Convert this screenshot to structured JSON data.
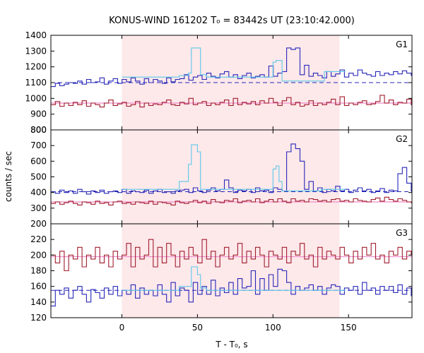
{
  "chart_data": {
    "type": "line",
    "title": "KONUS-WIND 161202 T₀ = 83442s UT (23:10:42.000)",
    "xlabel": "T - T₀, s",
    "ylabel": "counts / sec",
    "xlim": [
      -47,
      192
    ],
    "x_ticks": [
      "0",
      "50",
      "100",
      "150"
    ],
    "highlight_interval": {
      "x0": 0,
      "x1": 144,
      "color": "#fde8ea"
    },
    "bin_width_s": 2.944,
    "colors": {
      "signal": "#2727b8",
      "fit": "#5cc8e8",
      "background": "#a01c2e",
      "background_fit": "#ee8cc8",
      "shade": "#fde8ea"
    },
    "panels": [
      {
        "name": "G1",
        "ylim": [
          800,
          1400
        ],
        "y_ticks": [
          "800",
          "900",
          "1000",
          "1100",
          "1200",
          "1300",
          "1400"
        ],
        "signal": [
          1075,
          1095,
          1080,
          1090,
          1100,
          1095,
          1110,
          1090,
          1120,
          1100,
          1105,
          1130,
          1090,
          1110,
          1125,
          1095,
          1120,
          1105,
          1130,
          1110,
          1090,
          1125,
          1100,
          1120,
          1110,
          1095,
          1130,
          1105,
          1120,
          1125,
          1150,
          1115,
          1135,
          1145,
          1120,
          1160,
          1140,
          1130,
          1155,
          1170,
          1135,
          1150,
          1125,
          1145,
          1160,
          1130,
          1140,
          1150,
          1135,
          1205,
          1140,
          1160,
          1170,
          1320,
          1310,
          1320,
          1150,
          1210,
          1140,
          1160,
          1145,
          1130,
          1170,
          1140,
          1155,
          1180,
          1135,
          1160,
          1145,
          1180,
          1160,
          1150,
          1140,
          1170,
          1145,
          1160,
          1150,
          1170,
          1155,
          1175,
          1160,
          1145,
          1230,
          1245,
          1210,
          1100,
          1180,
          1110,
          1140,
          1105,
          1125,
          1100,
          1160,
          1110,
          1120,
          1150,
          1130,
          1160,
          1180,
          1135,
          1200,
          1160,
          1195,
          1150
        ],
        "signal_fit": [
          1100,
          1100,
          1100,
          1100,
          1100,
          1100,
          1100,
          1100,
          1100,
          1100,
          1100,
          1100,
          1100,
          1100,
          1100,
          1100,
          1100,
          1100,
          1100,
          1100,
          1100,
          1100,
          1100,
          1100,
          1100,
          1100,
          1100,
          1100,
          1100,
          1100,
          1100,
          1100,
          1100,
          1100,
          1100,
          1100,
          1100,
          1100,
          1100,
          1100,
          1100,
          1100,
          1100,
          1100,
          1100,
          1100,
          1100,
          1100,
          1100,
          1100,
          1100,
          1100,
          1100,
          1100,
          1100,
          1100,
          1100,
          1100,
          1100,
          1100,
          1100,
          1100,
          1100,
          1100,
          1100,
          1100,
          1100,
          1100,
          1100,
          1100,
          1100,
          1100,
          1100,
          1100,
          1100,
          1100,
          1100,
          1100,
          1100,
          1100,
          1100,
          1100,
          1100,
          1100,
          1100,
          1100,
          1100,
          1100,
          1100,
          1100,
          1100,
          1100,
          1100,
          1100,
          1100,
          1100,
          1100,
          1100,
          1100,
          1100,
          1100,
          1100,
          1100,
          1100
        ],
        "fit_step": [
          1135,
          1135,
          1135,
          1135,
          1135,
          1135,
          1135,
          1135,
          1135,
          1135,
          1135,
          1135,
          1135,
          1135,
          1135,
          1135,
          1135,
          1135,
          1135,
          1145,
          1145,
          1145,
          1160,
          1320,
          1320,
          1320,
          1150,
          1150,
          1135,
          1135,
          1135,
          1135,
          1135,
          1135,
          1135,
          1135,
          1135,
          1135,
          1135,
          1135,
          1135,
          1135,
          1135,
          1135,
          1135,
          1135,
          1135,
          1135,
          1135,
          1135,
          1230,
          1240,
          1240,
          1110,
          1110,
          1110,
          1110,
          1110,
          1110,
          1110,
          1110,
          1110,
          1110,
          1110,
          1110,
          1110,
          1110,
          1170,
          1170,
          1170,
          1170,
          1170,
          1170,
          1170
        ],
        "background": [
          960,
          980,
          950,
          970,
          955,
          975,
          960,
          985,
          950,
          970,
          960,
          945,
          970,
          990,
          955,
          965,
          975,
          950,
          960,
          980,
          945,
          970,
          955,
          965,
          960,
          975,
          990,
          960,
          955,
          975,
          965,
          1000,
          960,
          970,
          980,
          955,
          970,
          960,
          975,
          990,
          955,
          1000,
          960,
          975,
          965,
          980,
          960,
          985,
          970,
          1000,
          975,
          955,
          985,
          1005,
          960,
          975,
          950,
          960,
          985,
          955,
          970,
          960,
          975,
          995,
          960,
          1010,
          955,
          970,
          960,
          975,
          985,
          960,
          965,
          980,
          1020,
          970,
          990,
          960,
          975,
          970,
          995,
          960,
          1025,
          975,
          990,
          960,
          975,
          1000,
          960,
          985,
          970,
          975,
          990,
          960,
          980,
          975,
          985,
          975,
          970,
          965,
          985,
          975,
          980,
          980
        ],
        "background_fit": 970
      },
      {
        "name": "G2",
        "ylim": [
          200,
          800
        ],
        "y_ticks": [
          "200",
          "300",
          "400",
          "500",
          "600",
          "700",
          "800"
        ],
        "signal": [
          405,
          395,
          415,
          400,
          410,
          395,
          420,
          405,
          390,
          410,
          400,
          415,
          395,
          405,
          410,
          400,
          420,
          395,
          410,
          405,
          400,
          415,
          395,
          410,
          420,
          400,
          405,
          395,
          410,
          415,
          420,
          400,
          430,
          410,
          400,
          415,
          430,
          410,
          420,
          480,
          430,
          400,
          415,
          410,
          420,
          400,
          430,
          410,
          415,
          400,
          430,
          420,
          410,
          660,
          710,
          680,
          600,
          420,
          470,
          410,
          430,
          400,
          420,
          410,
          440,
          410,
          420,
          400,
          415,
          430,
          410,
          420,
          400,
          410,
          425,
          400,
          415,
          410,
          520,
          560,
          460,
          410,
          420,
          400,
          390,
          405,
          395,
          415,
          400,
          420,
          390,
          400,
          460,
          440,
          480,
          410,
          405,
          430,
          410,
          440,
          400,
          400,
          400,
          400
        ],
        "signal_fit": 405,
        "fit_step": [
          420,
          420,
          420,
          420,
          420,
          420,
          420,
          420,
          420,
          420,
          420,
          420,
          420,
          420,
          420,
          420,
          420,
          420,
          420,
          470,
          470,
          470,
          580,
          705,
          705,
          660,
          420,
          420,
          420,
          420,
          420,
          420,
          420,
          420,
          420,
          420,
          420,
          420,
          420,
          420,
          420,
          420,
          420,
          420,
          420,
          420,
          420,
          420,
          420,
          420,
          550,
          570,
          470,
          410,
          410,
          410,
          410,
          410,
          410,
          410,
          410,
          410,
          410,
          410,
          410,
          410,
          420,
          420,
          420,
          420,
          420,
          420,
          420,
          420
        ],
        "background": [
          330,
          340,
          325,
          335,
          345,
          330,
          320,
          340,
          335,
          325,
          345,
          330,
          335,
          320,
          340,
          345,
          330,
          335,
          325,
          340,
          335,
          330,
          345,
          325,
          340,
          335,
          330,
          320,
          345,
          335,
          330,
          340,
          350,
          335,
          345,
          330,
          355,
          340,
          335,
          350,
          345,
          360,
          335,
          345,
          350,
          340,
          360,
          335,
          345,
          355,
          340,
          360,
          345,
          335,
          360,
          345,
          350,
          340,
          360,
          355,
          345,
          350,
          340,
          355,
          360,
          345,
          350,
          340,
          360,
          350,
          345,
          340,
          355,
          365,
          345,
          370,
          355,
          345,
          360,
          350,
          340,
          335,
          345,
          340,
          330,
          345,
          335,
          340,
          330,
          345,
          335,
          340,
          330,
          345,
          335,
          340,
          345,
          335,
          340,
          335,
          345,
          340,
          345,
          340
        ],
        "background_fit": 340
      },
      {
        "name": "G3",
        "ylim": [
          120,
          240
        ],
        "y_ticks": [
          "120",
          "140",
          "160",
          "180",
          "200",
          "220"
        ],
        "signal": [
          135,
          155,
          150,
          158,
          145,
          155,
          160,
          150,
          140,
          156,
          152,
          145,
          158,
          150,
          160,
          148,
          155,
          150,
          162,
          145,
          158,
          150,
          155,
          148,
          162,
          150,
          140,
          165,
          148,
          158,
          155,
          140,
          165,
          150,
          160,
          150,
          168,
          148,
          158,
          152,
          165,
          150,
          170,
          158,
          160,
          180,
          150,
          170,
          155,
          175,
          160,
          182,
          180,
          165,
          150,
          160,
          155,
          158,
          162,
          155,
          160,
          150,
          158,
          162,
          160,
          150,
          158,
          155,
          160,
          150,
          165,
          155,
          158,
          150,
          160,
          155,
          160,
          152,
          162,
          150,
          158,
          148,
          150,
          155,
          150,
          140,
          158,
          142,
          160,
          150,
          155,
          150,
          158,
          148,
          165,
          150,
          160,
          155,
          165,
          150,
          160,
          160,
          160,
          160
        ],
        "signal_fit": 155,
        "fit_step": [
          155,
          155,
          155,
          155,
          155,
          155,
          155,
          155,
          155,
          155,
          155,
          155,
          155,
          155,
          155,
          155,
          155,
          155,
          155,
          160,
          160,
          160,
          160,
          185,
          185,
          175,
          158,
          158,
          155,
          155,
          155,
          155,
          155,
          155,
          155,
          155,
          155,
          155,
          155,
          155,
          155,
          155,
          155,
          155,
          155,
          155,
          155,
          155,
          155,
          155,
          155,
          155,
          155,
          155,
          155,
          155,
          155,
          155,
          155,
          155,
          155,
          155,
          155,
          155,
          155,
          155,
          155,
          155,
          155,
          155,
          155,
          155,
          155,
          155
        ],
        "background": [
          200,
          190,
          205,
          180,
          200,
          195,
          210,
          185,
          200,
          195,
          210,
          190,
          200,
          185,
          205,
          195,
          200,
          215,
          185,
          210,
          195,
          200,
          220,
          185,
          210,
          190,
          215,
          200,
          185,
          205,
          195,
          210,
          200,
          190,
          220,
          195,
          205,
          185,
          200,
          210,
          195,
          200,
          215,
          190,
          205,
          195,
          210,
          200,
          185,
          205,
          200,
          195,
          210,
          190,
          205,
          200,
          215,
          195,
          200,
          185,
          210,
          195,
          205,
          200,
          195,
          210,
          200,
          190,
          205,
          195,
          210,
          200,
          215,
          195,
          200,
          190,
          205,
          200,
          210,
          195,
          205,
          200,
          215,
          195,
          200,
          190,
          205,
          195,
          200,
          210,
          195,
          205,
          200,
          215,
          195,
          205,
          200,
          210,
          195,
          205,
          200,
          215,
          200,
          205
        ],
        "background_fit": 198
      }
    ]
  }
}
